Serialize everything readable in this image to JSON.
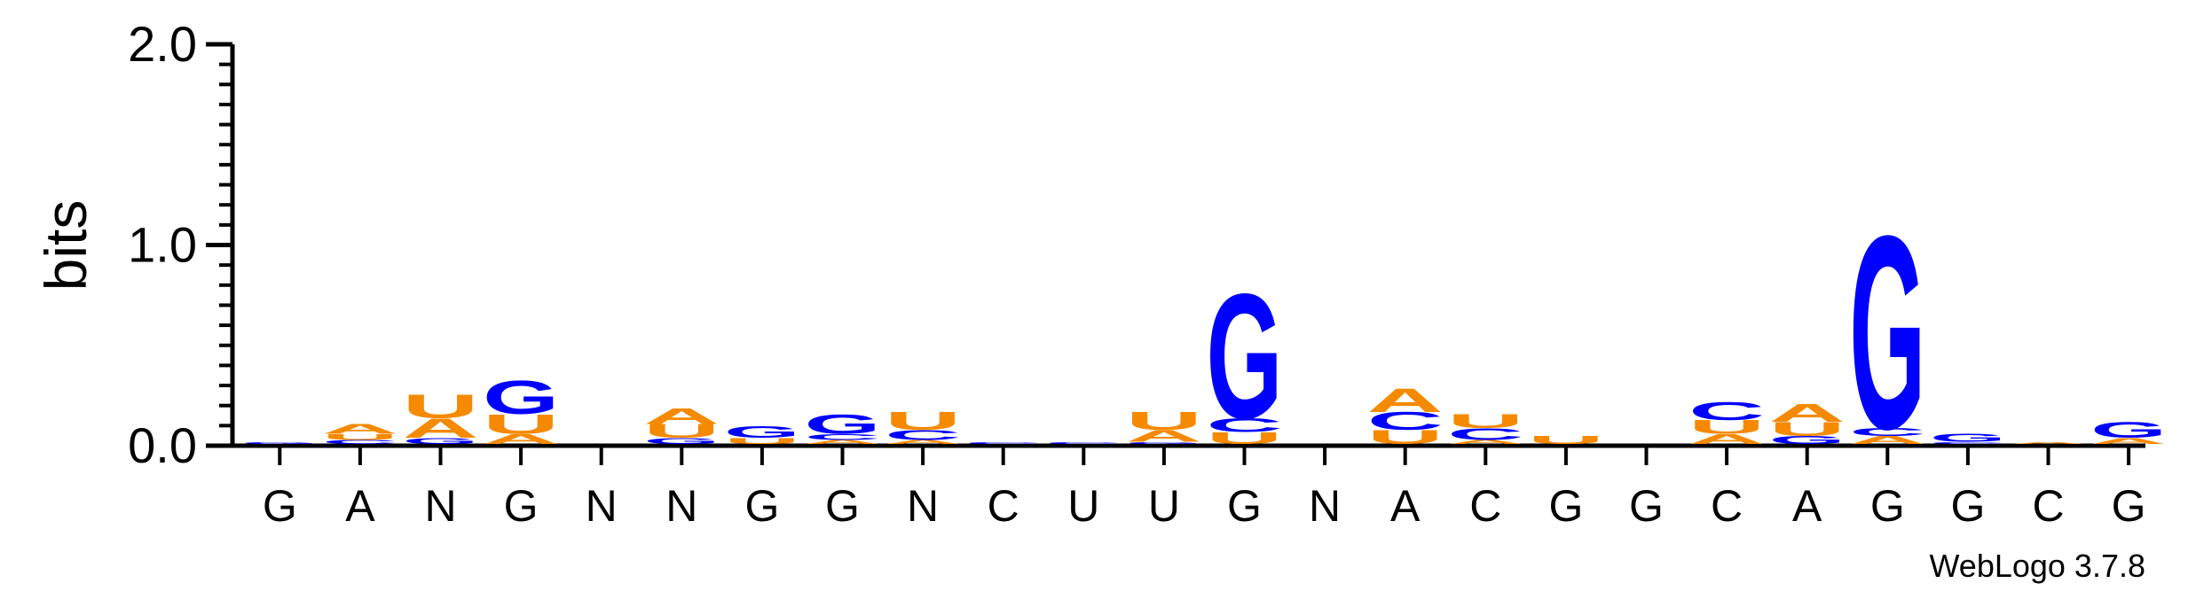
{
  "chart_data": {
    "type": "sequence-logo",
    "ylabel": "bits",
    "ylim": [
      0.0,
      2.0
    ],
    "yticks": [
      "0.0",
      "1.0",
      "2.0"
    ],
    "positions": [
      "G",
      "A",
      "N",
      "G",
      "N",
      "N",
      "G",
      "G",
      "N",
      "C",
      "U",
      "U",
      "G",
      "N",
      "A",
      "C",
      "G",
      "G",
      "C",
      "A",
      "G",
      "G",
      "C",
      "G"
    ],
    "colors": {
      "A": "#f58a00",
      "U": "#f58a00",
      "C": "#0000ff",
      "G": "#0000ff"
    },
    "stacks": [
      [
        {
          "base": "G",
          "bits": 0.01
        }
      ],
      [
        {
          "base": "C",
          "bits": 0.02
        },
        {
          "base": "U",
          "bits": 0.03
        },
        {
          "base": "A",
          "bits": 0.05
        }
      ],
      [
        {
          "base": "G",
          "bits": 0.03
        },
        {
          "base": "A",
          "bits": 0.1
        },
        {
          "base": "U",
          "bits": 0.12
        }
      ],
      [
        {
          "base": "A",
          "bits": 0.05
        },
        {
          "base": "U",
          "bits": 0.1
        },
        {
          "base": "G",
          "bits": 0.17
        }
      ],
      [],
      [
        {
          "base": "G",
          "bits": 0.03
        },
        {
          "base": "U",
          "bits": 0.07
        },
        {
          "base": "A",
          "bits": 0.08
        }
      ],
      [
        {
          "base": "U",
          "bits": 0.03
        },
        {
          "base": "G",
          "bits": 0.06
        }
      ],
      [
        {
          "base": "A",
          "bits": 0.02
        },
        {
          "base": "C",
          "bits": 0.03
        },
        {
          "base": "G",
          "bits": 0.1
        }
      ],
      [
        {
          "base": "A",
          "bits": 0.02
        },
        {
          "base": "C",
          "bits": 0.05
        },
        {
          "base": "U",
          "bits": 0.09
        }
      ],
      [
        {
          "base": "C",
          "bits": 0.01
        }
      ],
      [
        {
          "base": "C",
          "bits": 0.01
        }
      ],
      [
        {
          "base": "G",
          "bits": 0.01
        },
        {
          "base": "A",
          "bits": 0.06
        },
        {
          "base": "U",
          "bits": 0.09
        }
      ],
      [
        {
          "base": "U",
          "bits": 0.06
        },
        {
          "base": "C",
          "bits": 0.07
        },
        {
          "base": "G",
          "bits": 0.64
        }
      ],
      [],
      [
        {
          "base": "U",
          "bits": 0.07
        },
        {
          "base": "C",
          "bits": 0.09
        },
        {
          "base": "A",
          "bits": 0.12
        }
      ],
      [
        {
          "base": "A",
          "bits": 0.02
        },
        {
          "base": "C",
          "bits": 0.06
        },
        {
          "base": "U",
          "bits": 0.07
        }
      ],
      [
        {
          "base": "U",
          "bits": 0.04
        }
      ],
      [],
      [
        {
          "base": "A",
          "bits": 0.05
        },
        {
          "base": "U",
          "bits": 0.07
        },
        {
          "base": "C",
          "bits": 0.09
        }
      ],
      [
        {
          "base": "G",
          "bits": 0.04
        },
        {
          "base": "U",
          "bits": 0.07
        },
        {
          "base": "A",
          "bits": 0.09
        }
      ],
      [
        {
          "base": "A",
          "bits": 0.04
        },
        {
          "base": "C",
          "bits": 0.04
        },
        {
          "base": "G",
          "bits": 0.99
        }
      ],
      [
        {
          "base": "C",
          "bits": 0.01
        },
        {
          "base": "G",
          "bits": 0.04
        }
      ],
      [
        {
          "base": "A",
          "bits": 0.01
        }
      ],
      [
        {
          "base": "A",
          "bits": 0.03
        },
        {
          "base": "G",
          "bits": 0.08
        }
      ]
    ]
  },
  "footer": {
    "credit": "WebLogo 3.7.8"
  }
}
